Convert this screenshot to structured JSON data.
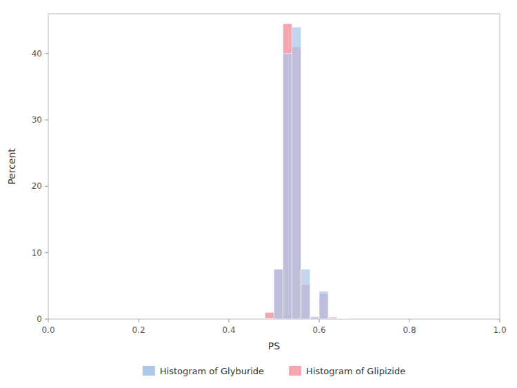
{
  "chart_data": {
    "type": "histogram",
    "xlabel": "PS",
    "ylabel": "Percent",
    "bins": [
      0.46,
      0.48,
      0.5,
      0.52,
      0.54,
      0.56,
      0.58,
      0.6,
      0.62,
      0.64,
      0.66
    ],
    "series": [
      {
        "name": "Histogram of Glyburide",
        "color": "#aec6e8",
        "values": [
          0.0,
          0.1,
          7.5,
          40.0,
          44.0,
          7.5,
          0.3,
          4.2,
          0.15,
          0.1
        ]
      },
      {
        "name": "Histogram of Glipizide",
        "color": "#f4a7b0",
        "values": [
          0.0,
          1.0,
          7.5,
          44.5,
          41.0,
          5.2,
          0.4,
          3.8,
          0.3,
          0.1
        ]
      }
    ],
    "xlim": [
      0.0,
      1.0
    ],
    "ylim": [
      0,
      46
    ],
    "xticks": [
      {
        "value": 0,
        "label": "0.0"
      },
      0.2,
      0.4,
      0.6,
      0.8,
      {
        "value": 1,
        "label": "1.0"
      }
    ],
    "yticks": [
      0,
      10,
      20,
      30,
      40
    ],
    "legend": "bottom"
  }
}
